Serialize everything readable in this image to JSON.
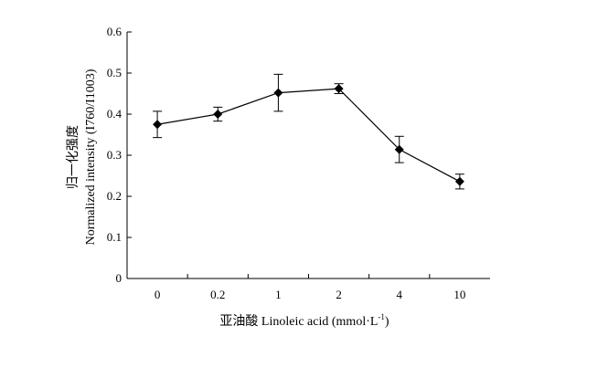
{
  "chart_data": {
    "type": "line",
    "categories": [
      "0",
      "0.2",
      "1",
      "2",
      "4",
      "10"
    ],
    "series": [
      {
        "values": [
          0.375,
          0.4,
          0.452,
          0.462,
          0.314,
          0.236
        ],
        "error": [
          0.032,
          0.017,
          0.045,
          0.012,
          0.032,
          0.018
        ],
        "marker": "diamond",
        "color": "#000000"
      }
    ],
    "xlabel": "亚油酸 Linoleic acid (mmol·L",
    "xlabel_sup": "-1",
    "xlabel_end": ")",
    "ylabel_cn": "归一化强度",
    "ylabel_en": "Normalized intensity (I760/I1003)",
    "ylim": [
      0,
      0.6
    ],
    "yticks": [
      "0",
      "0.1",
      "0.2",
      "0.3",
      "0.4",
      "0.5",
      "0.6"
    ],
    "grid": false
  }
}
